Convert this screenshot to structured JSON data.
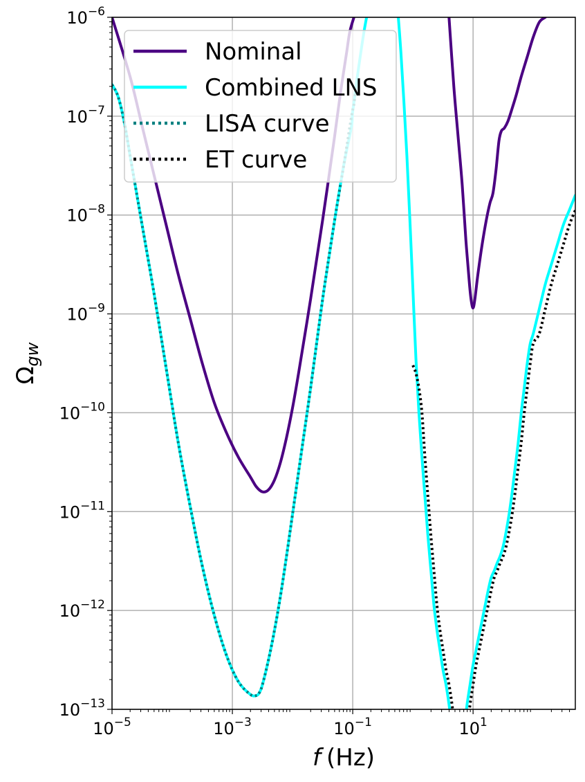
{
  "chart_data": {
    "type": "line",
    "title": "",
    "xscale": "log",
    "yscale": "log",
    "xlim": [
      1e-05,
      500
    ],
    "ylim": [
      1e-13,
      1e-06
    ],
    "grid": true,
    "legend_position": "top-left",
    "xlabel": {
      "var": "f",
      "unit": "(Hz)"
    },
    "ylabel": {
      "base": "Ω",
      "sub": "gw"
    },
    "x_ticks": [
      {
        "value": 1e-05,
        "base": "10",
        "exp": "−5"
      },
      {
        "value": 0.001,
        "base": "10",
        "exp": "−3"
      },
      {
        "value": 0.1,
        "base": "10",
        "exp": "−1"
      },
      {
        "value": 10,
        "base": "10",
        "exp": "1"
      }
    ],
    "y_ticks": [
      {
        "value": 1e-13,
        "base": "10",
        "exp": "−13"
      },
      {
        "value": 1e-12,
        "base": "10",
        "exp": "−12"
      },
      {
        "value": 1e-11,
        "base": "10",
        "exp": "−11"
      },
      {
        "value": 1e-10,
        "base": "10",
        "exp": "−10"
      },
      {
        "value": 1e-09,
        "base": "10",
        "exp": "−9"
      },
      {
        "value": 1e-08,
        "base": "10",
        "exp": "−8"
      },
      {
        "value": 1e-07,
        "base": "10",
        "exp": "−7"
      },
      {
        "value": 1e-06,
        "base": "10",
        "exp": "−6"
      }
    ],
    "series": [
      {
        "name": "Nominal",
        "color": "#4b0082",
        "style": "solid",
        "segments": [
          {
            "log10f": [
              -5.0,
              -4.7,
              -4.5,
              -4.3,
              -4.1,
              -3.9,
              -3.7,
              -3.5,
              -3.3,
              -3.1,
              -2.9,
              -2.7,
              -2.6,
              -2.5,
              -2.4,
              -2.3,
              -2.2,
              -2.1,
              -2.0,
              -1.9,
              -1.7,
              -1.5,
              -1.3,
              -1.2,
              -1.1,
              -1.05,
              -0.98
            ],
            "log10omega": [
              -6.0,
              -6.6,
              -7.1,
              -7.6,
              -8.1,
              -8.6,
              -9.05,
              -9.5,
              -9.9,
              -10.2,
              -10.45,
              -10.65,
              -10.75,
              -10.8,
              -10.78,
              -10.68,
              -10.5,
              -10.25,
              -9.95,
              -9.6,
              -8.85,
              -8.05,
              -7.2,
              -6.75,
              -6.35,
              -6.15,
              -6.0
            ]
          },
          {
            "log10f": [
              0.6,
              0.68,
              0.75,
              0.82,
              0.88,
              0.94,
              0.97,
              1.0,
              1.03,
              1.08,
              1.15,
              1.22,
              1.28,
              1.33,
              1.38,
              1.43,
              1.47,
              1.52,
              1.58,
              1.65,
              1.72,
              1.8,
              1.9,
              2.0,
              2.1,
              2.2
            ],
            "log10omega": [
              -6.0,
              -6.7,
              -7.2,
              -7.7,
              -8.25,
              -8.7,
              -8.87,
              -8.94,
              -8.85,
              -8.6,
              -8.3,
              -8.05,
              -7.88,
              -7.78,
              -7.55,
              -7.25,
              -7.15,
              -7.12,
              -7.05,
              -6.92,
              -6.78,
              -6.6,
              -6.4,
              -6.2,
              -6.05,
              -6.0
            ]
          }
        ]
      },
      {
        "name": "Combined LNS",
        "color": "#00ffff",
        "style": "solid",
        "segments": [
          {
            "log10f": [
              -5.0,
              -4.9,
              -4.8,
              -4.7,
              -4.6,
              -4.5,
              -4.3,
              -4.1,
              -3.9,
              -3.7,
              -3.5,
              -3.3,
              -3.1,
              -2.9,
              -2.7,
              -2.6,
              -2.55,
              -2.5,
              -2.4,
              -2.3,
              -2.2,
              -2.1,
              -1.9,
              -1.7,
              -1.5,
              -1.3,
              -1.15,
              -1.02,
              -1.0,
              -0.9,
              -0.8,
              -0.7,
              -0.6,
              -0.5,
              -0.45,
              -0.4,
              -0.35,
              -0.3,
              -0.25,
              -0.2,
              -0.15,
              -0.1,
              -0.05,
              0.0,
              0.05,
              0.1,
              0.15,
              0.2,
              0.25,
              0.3,
              0.35,
              0.4,
              0.45,
              0.5,
              0.55,
              0.6,
              0.65,
              0.7,
              0.75,
              0.8,
              0.85,
              0.9,
              0.95,
              1.0,
              1.05,
              1.1,
              1.15,
              1.2,
              1.25,
              1.3,
              1.35,
              1.4,
              1.45,
              1.5,
              1.55,
              1.6,
              1.65,
              1.7,
              1.75,
              1.8,
              1.85,
              1.9,
              1.95,
              2.0,
              2.1,
              2.2,
              2.3,
              2.4,
              2.5,
              2.6,
              2.7
            ],
            "log10omega": [
              -6.68,
              -6.8,
              -7.05,
              -7.4,
              -7.75,
              -8.1,
              -8.8,
              -9.55,
              -10.3,
              -10.95,
              -11.55,
              -12.05,
              -12.45,
              -12.72,
              -12.85,
              -12.86,
              -12.83,
              -12.75,
              -12.5,
              -12.2,
              -11.85,
              -11.45,
              -10.6,
              -9.75,
              -8.85,
              -8.05,
              -7.5,
              -7.1,
              -6.95,
              -6.5,
              -6.1,
              -5.8,
              -5.55,
              -5.4,
              -5.35,
              -5.36,
              -5.45,
              -5.65,
              -5.95,
              -6.35,
              -6.85,
              -7.4,
              -8.05,
              -8.75,
              -9.45,
              -10.0,
              -10.45,
              -10.85,
              -11.25,
              -11.6,
              -11.95,
              -12.2,
              -12.4,
              -12.6,
              -12.75,
              -12.95,
              -13.2,
              -13.4,
              -13.45,
              -13.4,
              -13.2,
              -12.95,
              -12.75,
              -12.55,
              -12.4,
              -12.25,
              -12.1,
              -11.95,
              -11.8,
              -11.67,
              -11.6,
              -11.52,
              -11.45,
              -11.35,
              -11.2,
              -11.02,
              -10.8,
              -10.55,
              -10.3,
              -10.0,
              -9.75,
              -9.5,
              -9.3,
              -9.2,
              -8.95,
              -8.7,
              -8.5,
              -8.3,
              -8.1,
              -7.95,
              -7.8
            ]
          }
        ]
      },
      {
        "name": "LISA curve",
        "color": "#008080",
        "style": "dotted",
        "segments": [
          {
            "log10f": [
              -5.0,
              -4.9,
              -4.8,
              -4.7,
              -4.6,
              -4.5,
              -4.3,
              -4.1,
              -3.9,
              -3.7,
              -3.5,
              -3.3,
              -3.1,
              -2.9,
              -2.7,
              -2.6,
              -2.55,
              -2.5,
              -2.4,
              -2.3,
              -2.2,
              -2.1,
              -1.9,
              -1.7,
              -1.5,
              -1.3,
              -1.15,
              -1.02,
              -0.98,
              -0.95
            ],
            "log10omega": [
              -6.68,
              -6.8,
              -7.05,
              -7.4,
              -7.75,
              -8.1,
              -8.8,
              -9.55,
              -10.3,
              -10.95,
              -11.55,
              -12.05,
              -12.45,
              -12.72,
              -12.85,
              -12.86,
              -12.83,
              -12.75,
              -12.5,
              -12.2,
              -11.85,
              -11.45,
              -10.6,
              -9.75,
              -8.85,
              -8.05,
              -7.5,
              -7.0,
              -6.88,
              -6.72
            ]
          }
        ]
      },
      {
        "name": "ET curve",
        "color": "#000000",
        "style": "dotted",
        "segments": [
          {
            "log10f": [
              0.0,
              0.05,
              0.1,
              0.15,
              0.2,
              0.25,
              0.3,
              0.35,
              0.4,
              0.45,
              0.5,
              0.55,
              0.6,
              0.65,
              0.7,
              0.75,
              0.8,
              0.85,
              0.9,
              0.95,
              1.0,
              1.05,
              1.1,
              1.15,
              1.2,
              1.25,
              1.3,
              1.35,
              1.4,
              1.45,
              1.5,
              1.55,
              1.6,
              1.65,
              1.7,
              1.75,
              1.8,
              1.85,
              1.9,
              1.95,
              2.0,
              2.1,
              2.2,
              2.3,
              2.4,
              2.5,
              2.6,
              2.7
            ],
            "log10omega": [
              -9.52,
              -9.6,
              -9.75,
              -10.0,
              -10.45,
              -10.85,
              -11.25,
              -11.6,
              -11.95,
              -12.2,
              -12.4,
              -12.6,
              -12.75,
              -12.95,
              -13.2,
              -13.4,
              -13.45,
              -13.4,
              -13.2,
              -12.95,
              -12.75,
              -12.55,
              -12.4,
              -12.25,
              -12.1,
              -11.95,
              -11.8,
              -11.67,
              -11.6,
              -11.52,
              -11.45,
              -11.35,
              -11.2,
              -11.02,
              -10.8,
              -10.55,
              -10.3,
              -10.0,
              -9.75,
              -9.5,
              -9.3,
              -9.2,
              -8.95,
              -8.7,
              -8.5,
              -8.3,
              -8.1,
              -7.95
            ]
          }
        ]
      }
    ]
  }
}
